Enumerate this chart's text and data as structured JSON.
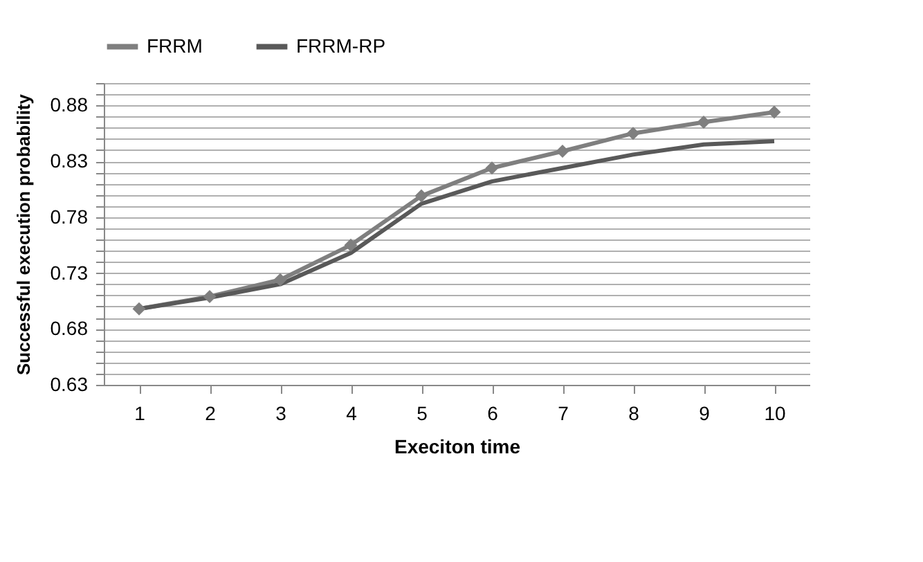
{
  "chart_data": {
    "type": "line",
    "xlabel": "Execiton time",
    "ylabel": "Successful execution probability",
    "categories": [
      "1",
      "2",
      "3",
      "4",
      "5",
      "6",
      "7",
      "8",
      "9",
      "10"
    ],
    "series": [
      {
        "name": "FRRM",
        "color": "#7f7f7f",
        "marker": "diamond",
        "values": [
          0.698,
          0.709,
          0.724,
          0.755,
          0.799,
          0.824,
          0.839,
          0.855,
          0.865,
          0.874
        ]
      },
      {
        "name": "FRRM-RP",
        "color": "#595959",
        "marker": "none",
        "values": [
          0.698,
          0.708,
          0.72,
          0.748,
          0.792,
          0.812,
          0.824,
          0.836,
          0.845,
          0.848
        ]
      }
    ],
    "ylim": [
      0.63,
      0.9
    ],
    "yticks": [
      0.63,
      {
        "value": 0.64,
        "label": null
      },
      {
        "value": 0.65,
        "label": null
      },
      {
        "value": 0.66,
        "label": null
      },
      {
        "value": 0.67,
        "label": null
      },
      0.68,
      {
        "value": 0.69,
        "label": null
      },
      {
        "value": 0.7,
        "label": null
      },
      {
        "value": 0.71,
        "label": null
      },
      {
        "value": 0.72,
        "label": null
      },
      0.73,
      {
        "value": 0.74,
        "label": null
      },
      {
        "value": 0.75,
        "label": null
      },
      {
        "value": 0.76,
        "label": null
      },
      {
        "value": 0.77,
        "label": null
      },
      0.78,
      {
        "value": 0.79,
        "label": null
      },
      {
        "value": 0.8,
        "label": null
      },
      {
        "value": 0.81,
        "label": null
      },
      {
        "value": 0.82,
        "label": null
      },
      0.83,
      {
        "value": 0.84,
        "label": null
      },
      {
        "value": 0.85,
        "label": null
      },
      {
        "value": 0.86,
        "label": null
      },
      {
        "value": 0.87,
        "label": null
      },
      0.88,
      {
        "value": 0.89,
        "label": null
      },
      {
        "value": 0.9,
        "label": null
      }
    ],
    "grid": "y",
    "legend": "top",
    "line_style": "solid"
  }
}
